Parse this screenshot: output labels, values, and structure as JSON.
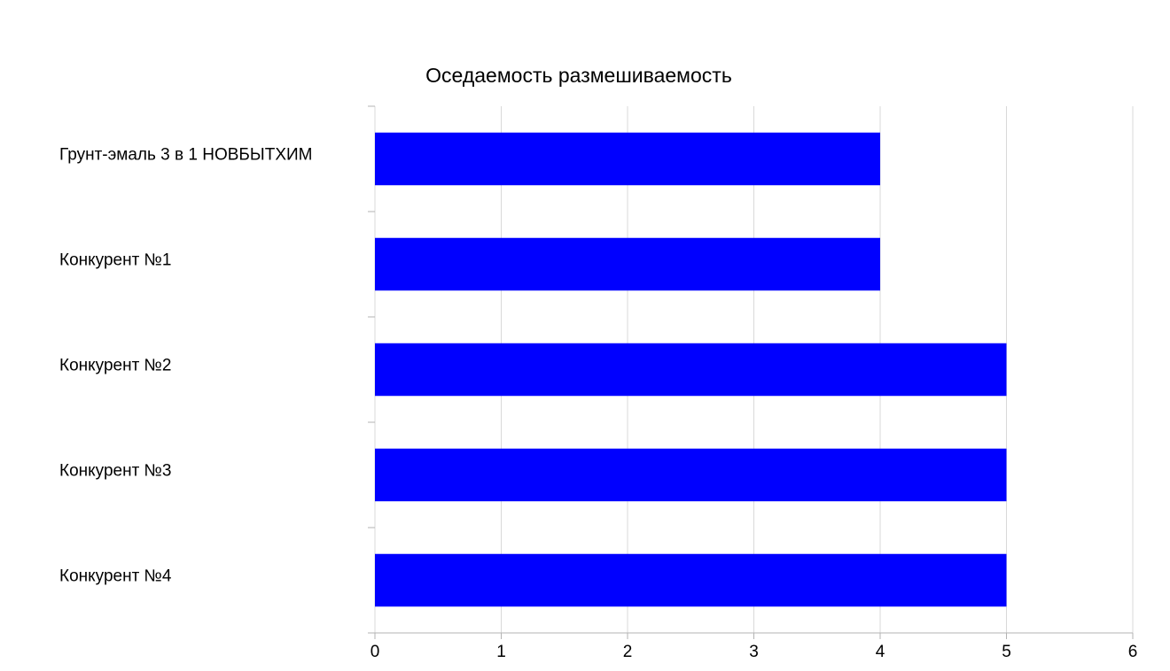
{
  "chart_data": {
    "type": "bar",
    "orientation": "horizontal",
    "title": "Оседаемость размешиваемость",
    "categories": [
      "Грунт-эмаль 3 в 1 НОВБЫТХИМ",
      "Конкурент №1",
      "Конкурент №2",
      "Конкурент №3",
      "Конкурент №4"
    ],
    "values": [
      4,
      4,
      5,
      5,
      5
    ],
    "color": "#0000ff",
    "xlim": [
      0,
      6
    ],
    "xticks": [
      0,
      1,
      2,
      3,
      4,
      5,
      6
    ],
    "grid": true
  }
}
